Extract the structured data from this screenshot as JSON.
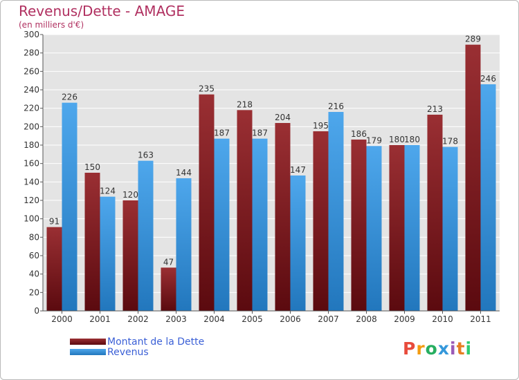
{
  "chart_data": {
    "type": "bar",
    "title": "Revenus/Dette - AMAGE",
    "subtitle": "(en milliers d'€)",
    "categories": [
      "2000",
      "2001",
      "2002",
      "2003",
      "2004",
      "2005",
      "2006",
      "2007",
      "2008",
      "2009",
      "2010",
      "2011"
    ],
    "series": [
      {
        "name": "Montant de la Dette",
        "color": "#7a1a1f",
        "values": [
          91,
          150,
          120,
          47,
          235,
          218,
          204,
          195,
          186,
          180,
          213,
          289
        ]
      },
      {
        "name": "Revenus",
        "color": "#3d95dc",
        "values": [
          226,
          124,
          163,
          144,
          187,
          187,
          147,
          216,
          179,
          180,
          178,
          246
        ]
      }
    ],
    "ylim": [
      0,
      300
    ],
    "yticks": [
      0,
      20,
      40,
      60,
      80,
      100,
      120,
      140,
      160,
      180,
      200,
      220,
      240,
      260,
      280,
      300
    ],
    "grid": true,
    "legend_position": "bottom-left"
  },
  "logo_text": "Proxiti",
  "logo_colors": [
    "#e84b3c",
    "#f39c12",
    "#27ae60",
    "#3498db",
    "#9b59b6",
    "#e67e22",
    "#2ecc71"
  ]
}
